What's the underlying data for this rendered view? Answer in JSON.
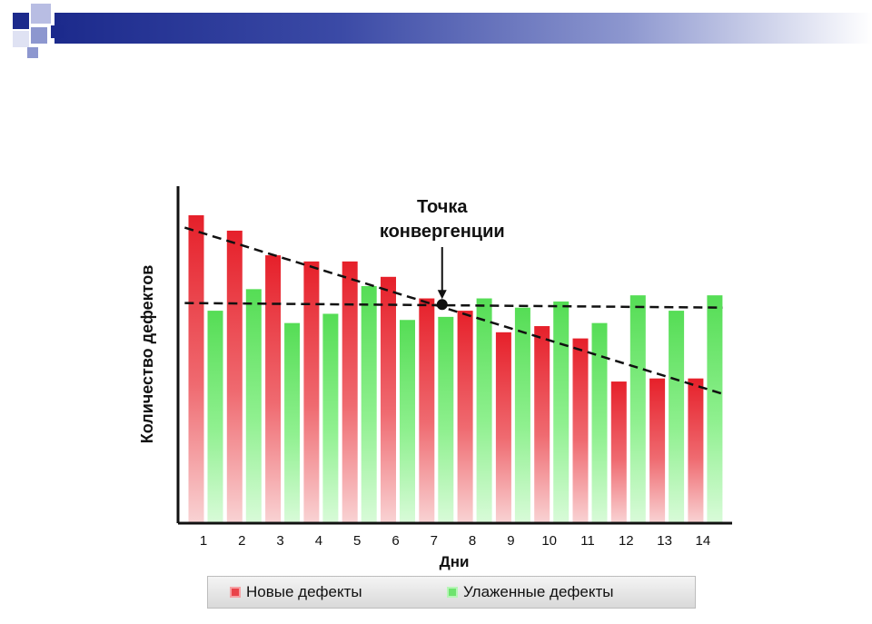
{
  "chart_data": {
    "type": "bar",
    "title": "",
    "xlabel": "Дни",
    "ylabel": "Количество дефектов",
    "categories": [
      "1",
      "2",
      "3",
      "4",
      "5",
      "6",
      "7",
      "8",
      "9",
      "10",
      "11",
      "12",
      "13",
      "14"
    ],
    "ylim": [
      0,
      100
    ],
    "grid": false,
    "legend_position": "bottom",
    "series": [
      {
        "name": "Новые дефекты",
        "color": "#e8333b",
        "values": [
          100,
          95,
          87,
          85,
          85,
          80,
          73,
          69,
          62,
          64,
          60,
          46,
          47,
          47
        ]
      },
      {
        "name": "Улаженные дефекты",
        "color": "#66e066",
        "values": [
          69,
          76,
          65,
          68,
          77,
          66,
          67,
          73,
          70,
          72,
          65,
          74,
          69,
          74
        ]
      }
    ],
    "trendlines": [
      {
        "series": "Новые дефекты",
        "style": "dashed",
        "color": "#111111",
        "from": [
          0.5,
          96
        ],
        "to": [
          14.5,
          42
        ]
      },
      {
        "series": "Улаженные дефекты",
        "style": "dashed",
        "color": "#111111",
        "from": [
          0.5,
          71.5
        ],
        "to": [
          14.5,
          70
        ]
      }
    ],
    "annotations": [
      {
        "text": "Точка\nконвергенции",
        "point": [
          7.2,
          71
        ]
      }
    ]
  },
  "legend": {
    "new_label": "Новые дефекты",
    "fixed_label": "Улаженные дефекты"
  }
}
